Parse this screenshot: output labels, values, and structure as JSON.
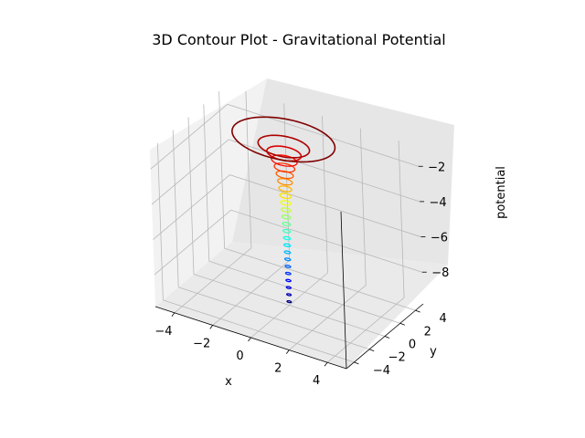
{
  "chart_data": {
    "type": "contour3d",
    "title": "3D Contour Plot - Gravitational Potential",
    "xlabel": "x",
    "ylabel": "y",
    "zlabel": "potential",
    "xlim": [
      -5,
      5
    ],
    "ylim": [
      -5,
      5
    ],
    "zlim": [
      -9.8,
      -0.9
    ],
    "x_ticks": [
      -4,
      -2,
      0,
      2,
      4
    ],
    "y_ticks": [
      -4,
      -2,
      0,
      2,
      4
    ],
    "z_ticks": [
      -2,
      -4,
      -6,
      -8
    ],
    "x_tick_labels": [
      "−4",
      "−2",
      "0",
      "2",
      "4"
    ],
    "y_tick_labels": [
      "−4",
      "−2",
      "0",
      "2",
      "4"
    ],
    "z_tick_labels": [
      "−2",
      "−4",
      "−6",
      "−8"
    ],
    "potential": "-1/r",
    "colormap": "jet",
    "levels": [
      -9.6,
      -9.2,
      -8.8,
      -8.4,
      -8.0,
      -7.6,
      -7.2,
      -6.8,
      -6.4,
      -6.0,
      -5.6,
      -5.2,
      -4.8,
      -4.4,
      -4.0,
      -3.6,
      -3.2,
      -2.8,
      -2.4,
      -2.0,
      -1.6,
      -1.2,
      -0.8,
      -0.4
    ],
    "grid": true,
    "legend": "none"
  }
}
